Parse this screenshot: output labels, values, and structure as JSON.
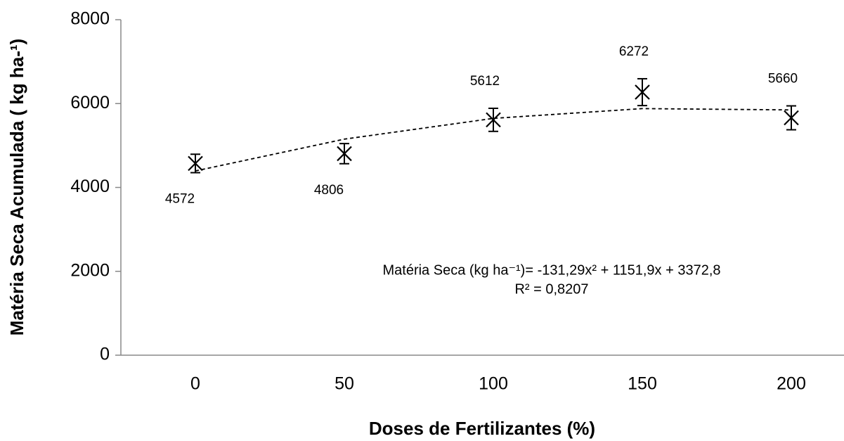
{
  "chart_data": {
    "type": "scatter",
    "categories": [
      "0",
      "50",
      "100",
      "150",
      "200"
    ],
    "series": [
      {
        "name": "Matéria Seca",
        "color": "#000000",
        "values": [
          4572,
          4806,
          5612,
          6272,
          5660
        ],
        "errors": [
          220,
          240,
          275,
          320,
          285
        ]
      }
    ],
    "trendline": {
      "values": [
        4393,
        5152,
        5647,
        5880,
        5849
      ],
      "color": "#000000",
      "dashed": true
    },
    "equation": "Matéria Seca (kg ha⁻¹)= -131,29x² + 1151,9x + 3372,8",
    "r_squared": "R² = 0,8207",
    "x_label": "Doses de Fertilizantes (%)",
    "y_label": "Matéria Seca Acumulada ( kg ha-¹)",
    "ylim": [
      0,
      8000
    ],
    "yticks": [
      0,
      2000,
      4000,
      6000,
      8000
    ],
    "grid": false
  }
}
